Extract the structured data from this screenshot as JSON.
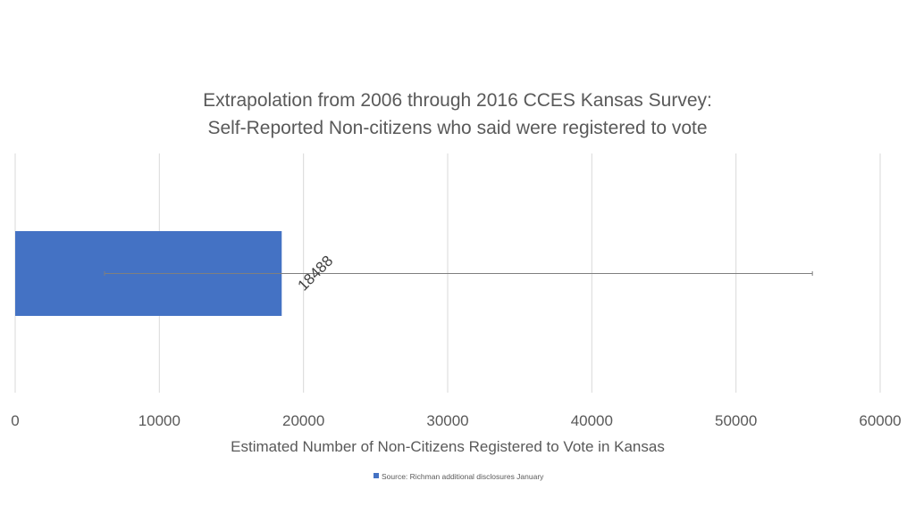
{
  "chart_data": {
    "type": "bar",
    "orientation": "horizontal",
    "title_lines": [
      "Extrapolation from 2006 through 2016 CCES Kansas Survey:",
      "Self-Reported Non-citizens who said were registered to vote"
    ],
    "xlabel": "Estimated Number of Non-Citizens Registered to Vote in Kansas",
    "ylabel": "",
    "xlim": [
      0,
      60000
    ],
    "xticks": [
      0,
      10000,
      20000,
      30000,
      40000,
      50000,
      60000
    ],
    "xtick_labels": [
      "0",
      "10000",
      "20000",
      "30000",
      "40000",
      "50000",
      "60000"
    ],
    "grid": "vertical",
    "series": [
      {
        "name": "Source: Richman additional disclosures January",
        "values": [
          18488
        ],
        "data_labels": [
          "18488"
        ],
        "error_low": [
          6200
        ],
        "error_high": [
          55300
        ]
      }
    ],
    "legend": {
      "position": "bottom"
    },
    "colors": {
      "bar": "#4472c4",
      "grid": "#d9d9d9",
      "text": "#595959",
      "errorbar": "#7f7f7f"
    }
  }
}
